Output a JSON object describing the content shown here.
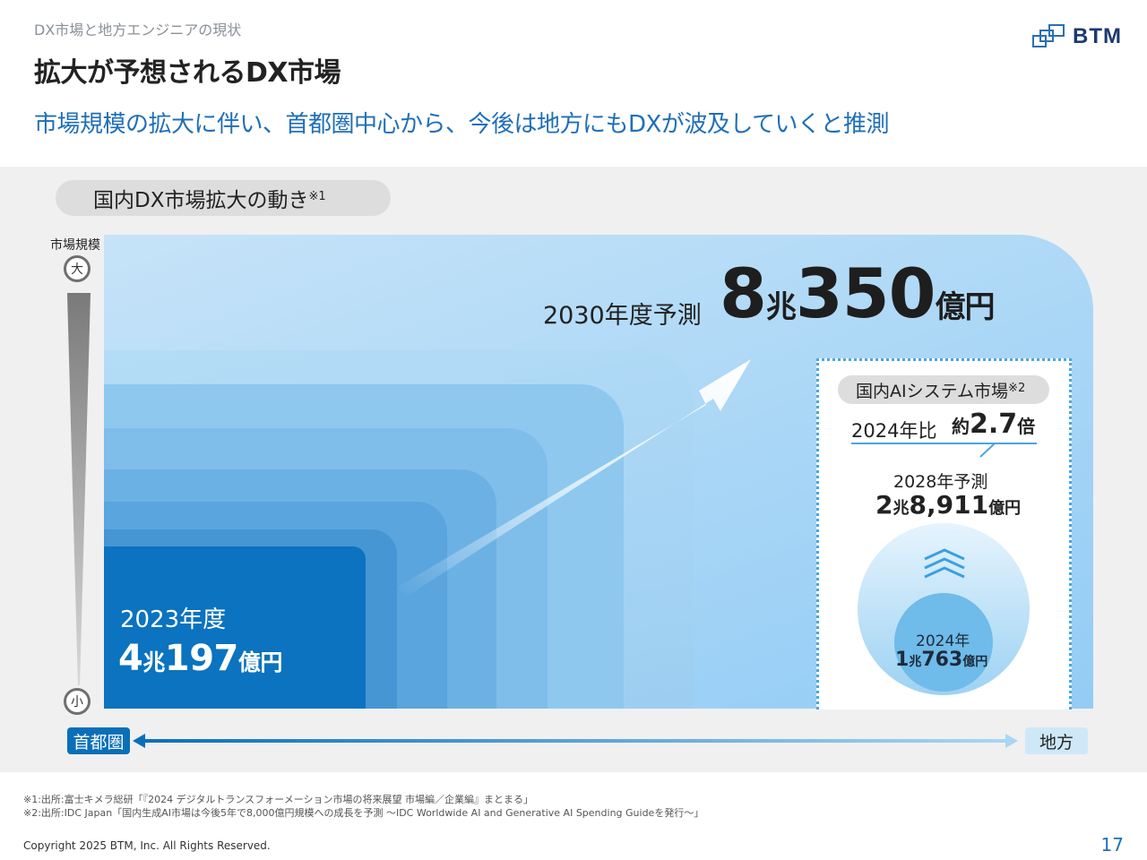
{
  "header": {
    "breadcrumb": "DX市場と地方エンジニアの現状",
    "title": "拡大が予想されるDX市場",
    "subtitle": "市場規模の拡大に伴い、首都圏中心から、今後は地方にもDXが波及していくと推測"
  },
  "logo": {
    "text": "BTM"
  },
  "section": {
    "label": "国内DX市場拡大の動き",
    "note_mark": "※1"
  },
  "axis": {
    "label": "市場規模",
    "top": "大",
    "bottom": "小"
  },
  "market_2023": {
    "label": "2023年度",
    "value_num1": "4",
    "unit1": "兆",
    "value_num2": "197",
    "unit2": "億円"
  },
  "forecast_2030": {
    "label": "2030年度予測",
    "value_num1": "8",
    "unit1": "兆",
    "value_num2": "350",
    "unit2": "億円"
  },
  "ai_market": {
    "label": "国内AIシステム市場",
    "note_mark": "※2",
    "ratio_label": "2024年比",
    "ratio_prefix": "約",
    "ratio_value": "2.7",
    "ratio_suffix": "倍",
    "forecast_label": "2028年予測",
    "forecast_num1": "2",
    "forecast_unit1": "兆",
    "forecast_num2": "8,911",
    "forecast_unit2": "億円",
    "base_label": "2024年",
    "base_num1": "1",
    "base_unit1": "兆",
    "base_num2": "763",
    "base_unit2": "億円"
  },
  "bottom_axis": {
    "left": "首都圏",
    "right": "地方"
  },
  "footnotes": [
    "※1:出所:富士キメラ総研「『2024 デジタルトランスフォーメーション市場の将来展望 市場編／企業編』まとまる」",
    "※2:出所:IDC Japan「国内生成AI市場は今後5年で8,000億円規模への成長を予測 ～IDC Worldwide AI and Generative AI Spending Guideを発行～」"
  ],
  "footer": {
    "copyright": "Copyright 2025 BTM, Inc. All Rights Reserved.",
    "page": "17"
  },
  "colors": {
    "accent": "#1f6fb8",
    "dark_blue": "#0b73bf",
    "dotted_border": "#4aa5de"
  }
}
